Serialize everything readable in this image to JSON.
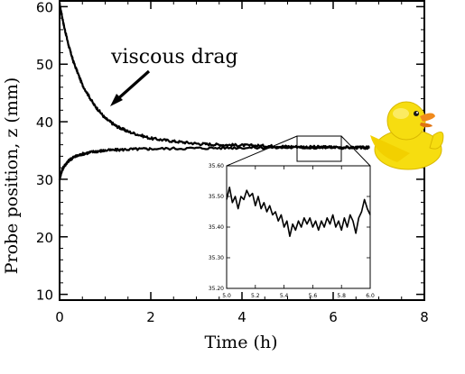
{
  "chart_data": [
    {
      "type": "line",
      "xlabel": "Time (h)",
      "ylabel": "Probe position, z (mm)",
      "xlim": [
        0,
        8
      ],
      "ylim": [
        9,
        61
      ],
      "xticks": [
        0,
        2,
        4,
        6,
        8
      ],
      "yticks": [
        10,
        20,
        30,
        40,
        50,
        60
      ],
      "annotation": "viscous drag",
      "series": [
        {
          "x": [
            0,
            0.1,
            0.2,
            0.3,
            0.5,
            0.75,
            1.0,
            1.25,
            1.5,
            2.0,
            2.5,
            3.0,
            3.5,
            4.0,
            4.5,
            5.0,
            5.5,
            6.0,
            6.5,
            6.8
          ],
          "values": [
            60.5,
            56.5,
            53.2,
            50.5,
            46.4,
            43.0,
            40.6,
            39.2,
            38.3,
            37.1,
            36.6,
            36.2,
            36.0,
            35.9,
            35.8,
            35.7,
            35.6,
            35.6,
            35.5,
            35.5
          ]
        },
        {
          "x": [
            0,
            0.05,
            0.1,
            0.2,
            0.3,
            0.5,
            0.75,
            1.0,
            1.5,
            2.0,
            3.0,
            4.0,
            5.0,
            6.0,
            6.8
          ],
          "values": [
            30.0,
            31.5,
            32.3,
            33.2,
            33.8,
            34.4,
            34.8,
            35.0,
            35.2,
            35.3,
            35.4,
            35.5,
            35.5,
            35.5,
            35.5
          ]
        }
      ]
    },
    {
      "type": "line",
      "xlim": [
        5.0,
        6.0
      ],
      "ylim": [
        35.2,
        35.6
      ],
      "xticks": [
        "5.0",
        "5.2",
        "5.4",
        "5.6",
        "5.8",
        "6.0"
      ],
      "yticks": [
        "35.20",
        "35.30",
        "35.40",
        "35.50",
        "35.60"
      ],
      "series": [
        {
          "x": [
            5.0,
            5.02,
            5.04,
            5.06,
            5.08,
            5.1,
            5.12,
            5.14,
            5.16,
            5.18,
            5.2,
            5.22,
            5.24,
            5.26,
            5.28,
            5.3,
            5.32,
            5.34,
            5.36,
            5.38,
            5.4,
            5.42,
            5.44,
            5.46,
            5.48,
            5.5,
            5.52,
            5.54,
            5.56,
            5.58,
            5.6,
            5.62,
            5.64,
            5.66,
            5.68,
            5.7,
            5.72,
            5.74,
            5.76,
            5.78,
            5.8,
            5.82,
            5.84,
            5.86,
            5.88,
            5.9,
            5.92,
            5.94,
            5.96,
            5.98,
            6.0
          ],
          "values": [
            35.49,
            35.53,
            35.48,
            35.5,
            35.46,
            35.5,
            35.49,
            35.52,
            35.5,
            35.51,
            35.47,
            35.5,
            35.46,
            35.48,
            35.45,
            35.47,
            35.44,
            35.45,
            35.42,
            35.44,
            35.4,
            35.42,
            35.37,
            35.41,
            35.39,
            35.42,
            35.4,
            35.43,
            35.41,
            35.43,
            35.4,
            35.42,
            35.39,
            35.42,
            35.4,
            35.43,
            35.41,
            35.44,
            35.4,
            35.42,
            35.39,
            35.43,
            35.4,
            35.44,
            35.42,
            35.38,
            35.43,
            35.45,
            35.49,
            35.46,
            35.44
          ]
        }
      ]
    }
  ]
}
